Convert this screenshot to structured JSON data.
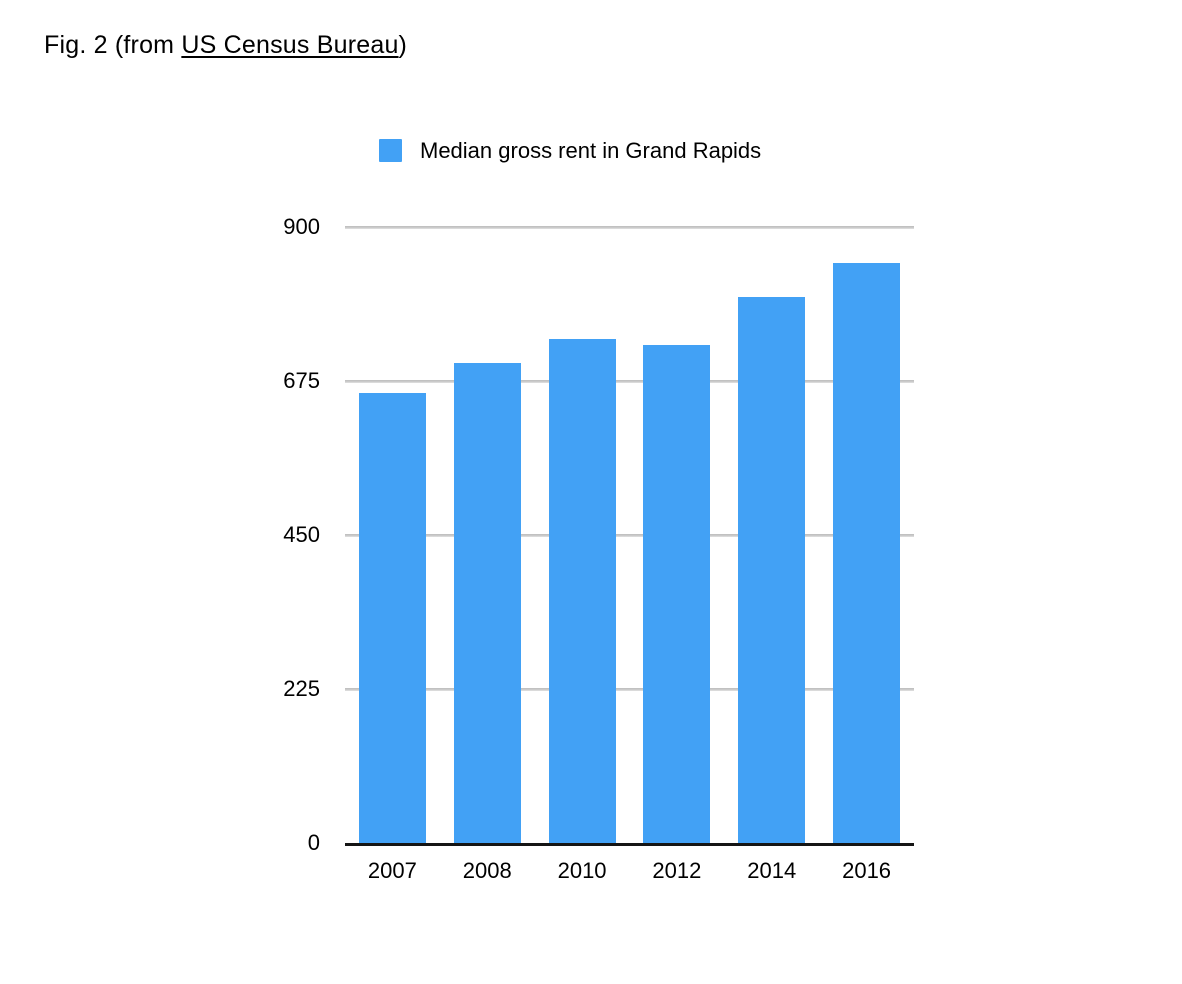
{
  "figure": {
    "title_prefix": "Fig. 2 (from ",
    "title_link": "US Census Bureau",
    "title_suffix": ")"
  },
  "legend": {
    "label": "Median gross rent in Grand Rapids",
    "swatch_color": "#42a1f5"
  },
  "chart_data": {
    "type": "bar",
    "title": "Median gross rent in Grand Rapids",
    "categories": [
      "2007",
      "2008",
      "2010",
      "2012",
      "2014",
      "2016"
    ],
    "values": [
      657,
      701,
      736,
      727,
      798,
      847
    ],
    "xlabel": "",
    "ylabel": "",
    "ylim": [
      0,
      900
    ],
    "yticks": [
      0,
      225,
      450,
      675,
      900
    ],
    "grid": true,
    "legend_position": "top",
    "bar_color": "#42a1f5",
    "gridline_color": "#c6c6c6",
    "axis_line_color": "#151515",
    "text_color": "#000000"
  }
}
